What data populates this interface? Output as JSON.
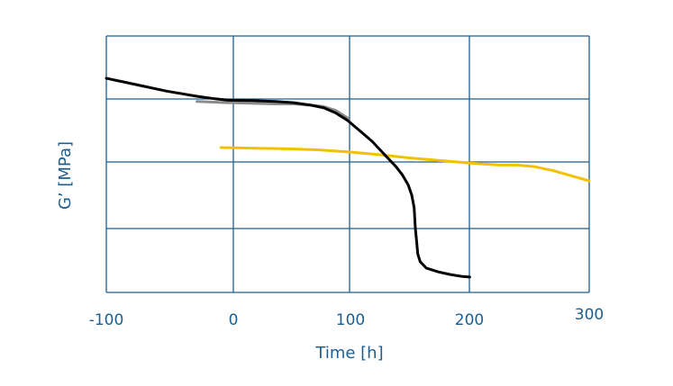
{
  "chart_data": {
    "type": "line",
    "title": "",
    "xlabel": "Time [h]",
    "ylabel": "G’ [MPa]",
    "xlim": [
      -100,
      300
    ],
    "x_ticks": [
      "-100",
      "0",
      "100",
      "200",
      "300"
    ],
    "y_tick_labels": [],
    "grid": true,
    "legend": "none",
    "axis_color": "#1f5f8f",
    "series": [
      {
        "color": "#000000",
        "points": [
          [
            -100,
            0.835
          ],
          [
            -75,
            0.81
          ],
          [
            -50,
            0.785
          ],
          [
            -25,
            0.765
          ],
          [
            -10,
            0.755
          ],
          [
            0,
            0.75
          ],
          [
            20,
            0.748
          ],
          [
            40,
            0.745
          ],
          [
            55,
            0.74
          ],
          [
            70,
            0.73
          ],
          [
            80,
            0.72
          ],
          [
            90,
            0.7
          ],
          [
            100,
            0.67
          ],
          [
            110,
            0.63
          ],
          [
            120,
            0.59
          ],
          [
            130,
            0.54
          ],
          [
            140,
            0.49
          ],
          [
            145,
            0.46
          ],
          [
            150,
            0.42
          ],
          [
            153,
            0.38
          ],
          [
            155,
            0.33
          ],
          [
            156,
            0.25
          ],
          [
            157,
            0.2
          ],
          [
            158,
            0.15
          ],
          [
            160,
            0.12
          ],
          [
            165,
            0.095
          ],
          [
            175,
            0.08
          ],
          [
            185,
            0.07
          ],
          [
            195,
            0.062
          ],
          [
            201,
            0.06
          ]
        ]
      },
      {
        "color": "#8c8c8c",
        "points": [
          [
            -25,
            0.745
          ],
          [
            0,
            0.74
          ],
          [
            20,
            0.738
          ],
          [
            40,
            0.735
          ],
          [
            55,
            0.735
          ],
          [
            70,
            0.73
          ],
          [
            80,
            0.725
          ],
          [
            90,
            0.71
          ],
          [
            100,
            0.68
          ]
        ]
      },
      {
        "color": "#f2c200",
        "points": [
          [
            -5,
            0.565
          ],
          [
            25,
            0.562
          ],
          [
            50,
            0.56
          ],
          [
            75,
            0.556
          ],
          [
            100,
            0.548
          ],
          [
            125,
            0.538
          ],
          [
            150,
            0.525
          ],
          [
            175,
            0.515
          ],
          [
            200,
            0.505
          ],
          [
            215,
            0.5
          ],
          [
            225,
            0.497
          ],
          [
            240,
            0.497
          ],
          [
            255,
            0.49
          ],
          [
            270,
            0.475
          ],
          [
            285,
            0.455
          ],
          [
            300,
            0.435
          ]
        ]
      }
    ]
  }
}
